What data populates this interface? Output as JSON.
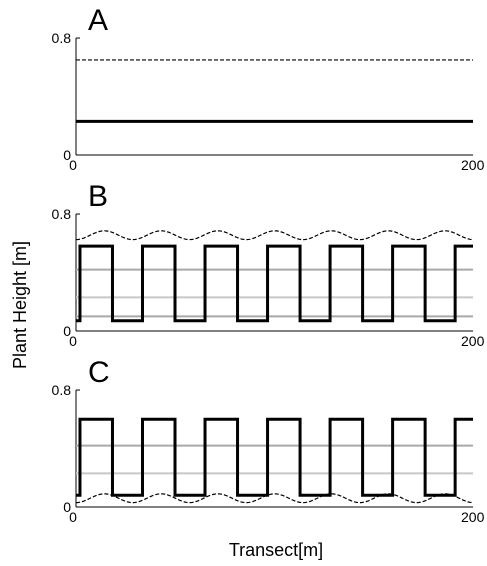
{
  "figure": {
    "ylabel": "Plant  Height [m]",
    "xlabel": "Transect[m]"
  },
  "chart_data": [
    {
      "type": "line",
      "panel_label": "A",
      "xlim": [
        0,
        200
      ],
      "ylim": [
        0,
        0.8
      ],
      "xticks": [
        "0",
        "200"
      ],
      "yticks": [
        "0",
        "0.8"
      ],
      "grid": false,
      "series": [
        {
          "style": "dashed",
          "color": "#000000",
          "kind": "constant",
          "value": 0.65
        },
        {
          "style": "solid-thick",
          "color": "#000000",
          "kind": "constant",
          "value": 0.23
        }
      ]
    },
    {
      "type": "line",
      "panel_label": "B",
      "xlim": [
        0,
        200
      ],
      "ylim": [
        0,
        0.8
      ],
      "xticks": [
        "0",
        "200"
      ],
      "yticks": [
        "0",
        "0.8"
      ],
      "grid": false,
      "series": [
        {
          "style": "solid",
          "color": "#c8c8c8",
          "kind": "constant",
          "value": 0.23
        },
        {
          "style": "solid",
          "color": "#a9a9a9",
          "kind": "constant",
          "value": 0.42
        },
        {
          "style": "solid",
          "color": "#a9a9a9",
          "kind": "constant",
          "value": 0.1
        },
        {
          "style": "dashed",
          "color": "#000000",
          "kind": "wave",
          "mean": 0.655,
          "amplitude": 0.03,
          "period": 28.6,
          "phase": 0.5
        },
        {
          "style": "solid-thick",
          "color": "#000000",
          "kind": "square",
          "high": 0.58,
          "low": 0.07,
          "period": 31.5,
          "duty": 0.52,
          "start": 2
        }
      ]
    },
    {
      "type": "line",
      "panel_label": "C",
      "xlim": [
        0,
        200
      ],
      "ylim": [
        0,
        0.8
      ],
      "xticks": [
        "0",
        "200"
      ],
      "yticks": [
        "0",
        "0.8"
      ],
      "grid": false,
      "series": [
        {
          "style": "solid",
          "color": "#c8c8c8",
          "kind": "constant",
          "value": 0.23
        },
        {
          "style": "solid",
          "color": "#a9a9a9",
          "kind": "constant",
          "value": 0.42
        },
        {
          "style": "dashed",
          "color": "#000000",
          "kind": "wave",
          "mean": 0.06,
          "amplitude": 0.03,
          "period": 28.6,
          "phase": 0.5
        },
        {
          "style": "solid-thick",
          "color": "#000000",
          "kind": "square",
          "high": 0.6,
          "low": 0.08,
          "period": 31.5,
          "duty": 0.52,
          "start": 2
        }
      ]
    }
  ]
}
